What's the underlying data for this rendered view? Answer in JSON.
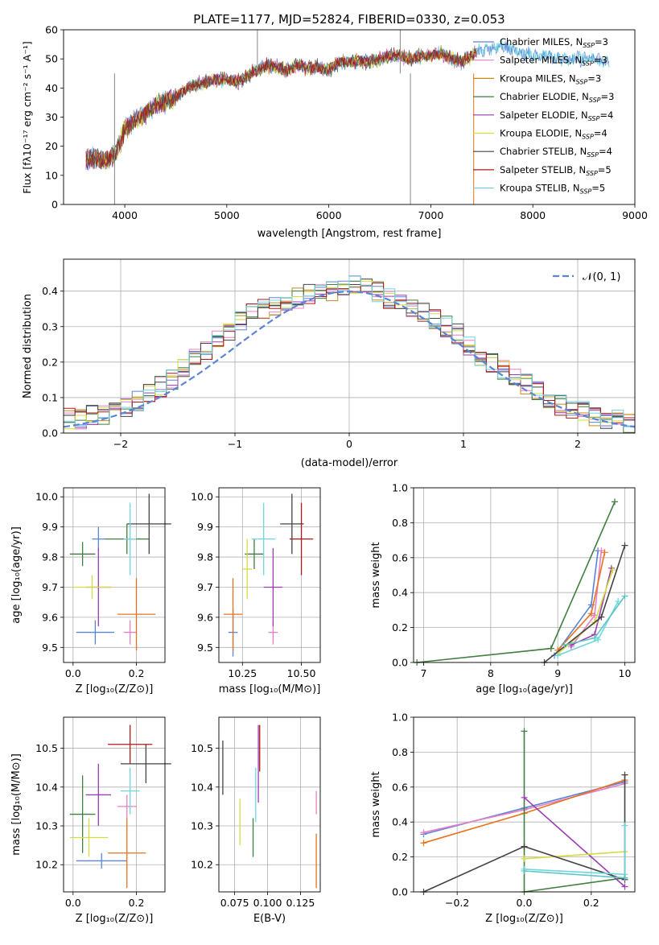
{
  "colors": {
    "chabrier_miles": "#5b84d6",
    "salpeter_miles": "#e87fc6",
    "kroupa_miles": "#c28a17",
    "chabrier_elodie": "#3f7f3f",
    "salpeter_elodie": "#9a3db0",
    "kroupa_elodie": "#d6dc3f",
    "chabrier_stelib": "#444444",
    "salpeter_stelib": "#b01818",
    "kroupa_stelib": "#6fd6e0",
    "orange": "#e8731d",
    "teal": "#5cc5c5"
  },
  "chart_data": [
    {
      "id": "spectrum",
      "type": "line",
      "title": "PLATE=1177, MJD=52824, FIBERID=0330, z=0.053",
      "xlabel": "wavelength [Angstrom, rest frame]",
      "ylabel": "Flux [fλ10⁻¹⁷ erg cm⁻² s⁻¹ A⁻¹]",
      "xlim": [
        3400,
        9000
      ],
      "ylim": [
        0,
        60
      ],
      "xticks": [
        "4000",
        "5000",
        "6000",
        "7000",
        "8000",
        "9000"
      ],
      "yticks": [
        "0",
        "10",
        "20",
        "30",
        "40",
        "50",
        "60"
      ],
      "legend_loc": "upper-right",
      "continuum_x": [
        3600,
        3700,
        3800,
        3900,
        3950,
        4000,
        4100,
        4200,
        4300,
        4400,
        4500,
        4600,
        4700,
        4800,
        4900,
        5000,
        5100,
        5200,
        5300,
        5400,
        5500,
        5600,
        5700,
        5800,
        5900,
        6000,
        6100,
        6200,
        6300,
        6400,
        6500,
        6600,
        6700,
        6800,
        6900,
        7000,
        7100,
        7200,
        7300,
        7400,
        7500,
        7600,
        7700,
        7800,
        7900,
        8000,
        8100,
        8200,
        8300,
        8400,
        8500,
        8600,
        8700,
        8800
      ],
      "continuum_y": [
        15,
        16,
        15,
        17,
        21,
        26,
        29,
        31,
        34,
        35,
        37,
        40,
        41,
        42,
        43,
        43,
        42,
        44,
        46,
        48,
        47,
        46,
        48,
        47,
        47,
        46,
        49,
        49,
        49,
        49,
        50,
        51,
        51,
        50,
        51,
        51,
        52,
        50,
        49,
        51,
        53,
        54,
        55,
        53,
        52,
        51,
        51,
        51,
        50,
        50,
        50,
        50,
        49,
        49
      ],
      "series": [
        {
          "name": "Chabrier MILES, N",
          "sub": "SSP",
          "suffix": "=3",
          "color_key": "chabrier_miles"
        },
        {
          "name": "Salpeter MILES, N",
          "sub": "SSP",
          "suffix": "=3",
          "color_key": "salpeter_miles"
        },
        {
          "name": "Kroupa MILES, N",
          "sub": "SSP",
          "suffix": "=3",
          "color_key": "kroupa_miles"
        },
        {
          "name": "Chabrier ELODIE, N",
          "sub": "SSP",
          "suffix": "=3",
          "color_key": "chabrier_elodie"
        },
        {
          "name": "Salpeter ELODIE, N",
          "sub": "SSP",
          "suffix": "=4",
          "color_key": "salpeter_elodie"
        },
        {
          "name": "Kroupa ELODIE, N",
          "sub": "SSP",
          "suffix": "=4",
          "color_key": "kroupa_elodie"
        },
        {
          "name": "Chabrier STELIB, N",
          "sub": "SSP",
          "suffix": "=4",
          "color_key": "chabrier_stelib"
        },
        {
          "name": "Salpeter STELIB, N",
          "sub": "SSP",
          "suffix": "=5",
          "color_key": "salpeter_stelib"
        },
        {
          "name": "Kroupa STELIB, N",
          "sub": "SSP",
          "suffix": "=5",
          "color_key": "kroupa_stelib"
        }
      ]
    },
    {
      "id": "residuals",
      "type": "line",
      "xlabel": "(data-model)/error",
      "ylabel": "Normed distribution",
      "xlim": [
        -2.5,
        2.5
      ],
      "ylim": [
        0,
        0.49
      ],
      "xticks": [
        "−2",
        "−1",
        "0",
        "1",
        "2"
      ],
      "yticks": [
        "0.0",
        "0.1",
        "0.2",
        "0.3",
        "0.4"
      ],
      "grid": true,
      "legend_loc": "upper-right",
      "legend_label": "𝒩(0, 1)",
      "bin_width": 0.1,
      "bins_from": -2.5,
      "hist": [
        0.04,
        0.04,
        0.05,
        0.05,
        0.06,
        0.07,
        0.09,
        0.11,
        0.13,
        0.15,
        0.18,
        0.21,
        0.23,
        0.26,
        0.29,
        0.32,
        0.34,
        0.35,
        0.36,
        0.37,
        0.38,
        0.39,
        0.39,
        0.4,
        0.41,
        0.42,
        0.41,
        0.4,
        0.38,
        0.37,
        0.35,
        0.34,
        0.32,
        0.3,
        0.28,
        0.25,
        0.22,
        0.2,
        0.18,
        0.16,
        0.14,
        0.12,
        0.1,
        0.08,
        0.07,
        0.06,
        0.05,
        0.04,
        0.04,
        0.03
      ]
    },
    {
      "id": "z_age",
      "type": "scatter",
      "xlabel": "Z [log₁₀(Z/Z⊙)]",
      "ylabel": "age  [log₁₀(age/yr)]",
      "xlim": [
        -0.03,
        0.29
      ],
      "ylim": [
        9.45,
        10.03
      ],
      "xticks": [
        "0.0",
        "0.2"
      ],
      "yticks": [
        "9.5",
        "9.6",
        "9.7",
        "9.8",
        "9.9",
        "10.0"
      ],
      "grid": true,
      "points": [
        {
          "x": 0.08,
          "y": 9.86,
          "xerr": 0.02,
          "yerr": 0.04,
          "color_key": "chabrier_miles"
        },
        {
          "x": 0.18,
          "y": 9.55,
          "xerr": 0.02,
          "yerr": 0.04,
          "color_key": "salpeter_miles"
        },
        {
          "x": 0.2,
          "y": 9.61,
          "xerr": 0.06,
          "yerr": 0.12,
          "color_key": "orange"
        },
        {
          "x": 0.03,
          "y": 9.81,
          "xerr": 0.04,
          "yerr": 0.04,
          "color_key": "chabrier_elodie"
        },
        {
          "x": 0.08,
          "y": 9.7,
          "xerr": 0.04,
          "yerr": 0.13,
          "color_key": "salpeter_elodie"
        },
        {
          "x": 0.06,
          "y": 9.7,
          "xerr": 0.06,
          "yerr": 0.04,
          "color_key": "kroupa_elodie"
        },
        {
          "x": 0.24,
          "y": 9.91,
          "xerr": 0.07,
          "yerr": 0.1,
          "color_key": "chabrier_stelib"
        },
        {
          "x": 0.17,
          "y": 9.86,
          "xerr": 0.07,
          "yerr": 0.05,
          "color_key": "chabrier_elodie"
        },
        {
          "x": 0.18,
          "y": 9.86,
          "xerr": 0.02,
          "yerr": 0.12,
          "color_key": "kroupa_stelib"
        },
        {
          "x": 0.07,
          "y": 9.55,
          "xerr": 0.06,
          "yerr": 0.04,
          "color_key": "chabrier_miles"
        }
      ]
    },
    {
      "id": "mass_age",
      "type": "scatter",
      "xlabel": "mass [log₁₀(M/M⊙)]",
      "xlim": [
        10.15,
        10.58
      ],
      "ylim": [
        9.45,
        10.03
      ],
      "xticks": [
        "10.25",
        "10.50"
      ],
      "yticks": [
        "9.5",
        "9.6",
        "9.7",
        "9.8",
        "9.9",
        "10.0"
      ],
      "grid": true,
      "points": [
        {
          "x": 10.21,
          "y": 9.55,
          "xerr": 0.02,
          "yerr": 0.08,
          "color_key": "chabrier_miles"
        },
        {
          "x": 10.38,
          "y": 9.55,
          "xerr": 0.02,
          "yerr": 0.04,
          "color_key": "salpeter_miles"
        },
        {
          "x": 10.21,
          "y": 9.61,
          "xerr": 0.04,
          "yerr": 0.12,
          "color_key": "orange"
        },
        {
          "x": 10.3,
          "y": 9.81,
          "xerr": 0.04,
          "yerr": 0.05,
          "color_key": "chabrier_elodie"
        },
        {
          "x": 10.38,
          "y": 9.7,
          "xerr": 0.04,
          "yerr": 0.13,
          "color_key": "salpeter_elodie"
        },
        {
          "x": 10.27,
          "y": 9.76,
          "xerr": 0.02,
          "yerr": 0.1,
          "color_key": "kroupa_elodie"
        },
        {
          "x": 10.46,
          "y": 9.91,
          "xerr": 0.05,
          "yerr": 0.1,
          "color_key": "chabrier_stelib"
        },
        {
          "x": 10.5,
          "y": 9.86,
          "xerr": 0.05,
          "yerr": 0.12,
          "color_key": "salpeter_stelib"
        },
        {
          "x": 10.34,
          "y": 9.86,
          "xerr": 0.05,
          "yerr": 0.12,
          "color_key": "kroupa_stelib"
        }
      ]
    },
    {
      "id": "age_weight",
      "type": "line",
      "xlabel": "age  [log₁₀(age/yr)]",
      "ylabel": "mass weight",
      "xlim": [
        6.85,
        10.15
      ],
      "ylim": [
        0,
        1.0
      ],
      "xticks": [
        "7",
        "8",
        "9",
        "10"
      ],
      "yticks": [
        "0.0",
        "0.2",
        "0.4",
        "0.6",
        "0.8",
        "1.0"
      ],
      "grid": true,
      "series": [
        {
          "color_key": "chabrier_miles",
          "x": [
            8.95,
            9.5,
            9.6
          ],
          "y": [
            0.04,
            0.33,
            0.64
          ]
        },
        {
          "color_key": "salpeter_miles",
          "x": [
            9.2,
            9.55,
            9.65
          ],
          "y": [
            0.09,
            0.27,
            0.64
          ]
        },
        {
          "color_key": "orange",
          "x": [
            9.0,
            9.5,
            9.7
          ],
          "y": [
            0.07,
            0.28,
            0.63
          ]
        },
        {
          "color_key": "chabrier_elodie",
          "x": [
            6.9,
            8.9,
            9.85
          ],
          "y": [
            0.0,
            0.08,
            0.92
          ]
        },
        {
          "color_key": "salpeter_elodie",
          "x": [
            9.2,
            9.55,
            9.8
          ],
          "y": [
            0.1,
            0.16,
            0.54
          ]
        },
        {
          "color_key": "kroupa_elodie",
          "x": [
            9.0,
            9.55,
            9.82
          ],
          "y": [
            0.05,
            0.23,
            0.53
          ]
        },
        {
          "color_key": "chabrier_stelib",
          "x": [
            8.8,
            9.65,
            10.0
          ],
          "y": [
            0.0,
            0.26,
            0.67
          ]
        },
        {
          "color_key": "kroupa_stelib",
          "x": [
            9.0,
            9.6,
            9.9
          ],
          "y": [
            0.04,
            0.13,
            0.35
          ]
        },
        {
          "color_key": "teal",
          "x": [
            9.1,
            9.55,
            10.0
          ],
          "y": [
            0.1,
            0.14,
            0.38
          ]
        }
      ]
    },
    {
      "id": "z_mass",
      "type": "scatter",
      "xlabel": "Z [log₁₀(Z/Z⊙)]",
      "ylabel": "mass [log₁₀(M/M⊙)]",
      "xlim": [
        -0.03,
        0.29
      ],
      "ylim": [
        10.13,
        10.58
      ],
      "xticks": [
        "0.0",
        "0.2"
      ],
      "yticks": [
        "10.2",
        "10.3",
        "10.4",
        "10.5"
      ],
      "grid": true,
      "points": [
        {
          "x": 0.09,
          "y": 10.21,
          "xerr": 0.08,
          "yerr": 0.02,
          "color_key": "chabrier_miles"
        },
        {
          "x": 0.17,
          "y": 10.35,
          "xerr": 0.03,
          "yerr": 0.03,
          "color_key": "salpeter_miles"
        },
        {
          "x": 0.17,
          "y": 10.23,
          "xerr": 0.06,
          "yerr": 0.09,
          "color_key": "orange"
        },
        {
          "x": 0.03,
          "y": 10.33,
          "xerr": 0.04,
          "yerr": 0.1,
          "color_key": "chabrier_elodie"
        },
        {
          "x": 0.08,
          "y": 10.38,
          "xerr": 0.04,
          "yerr": 0.08,
          "color_key": "salpeter_elodie"
        },
        {
          "x": 0.05,
          "y": 10.27,
          "xerr": 0.06,
          "yerr": 0.05,
          "color_key": "kroupa_elodie"
        },
        {
          "x": 0.23,
          "y": 10.46,
          "xerr": 0.08,
          "yerr": 0.05,
          "color_key": "chabrier_stelib"
        },
        {
          "x": 0.18,
          "y": 10.51,
          "xerr": 0.07,
          "yerr": 0.05,
          "color_key": "salpeter_stelib"
        },
        {
          "x": 0.18,
          "y": 10.39,
          "xerr": 0.03,
          "yerr": 0.06,
          "color_key": "kroupa_stelib"
        }
      ]
    },
    {
      "id": "ebv_mass",
      "type": "scatter",
      "xlabel": "E(B-V)",
      "xlim": [
        0.063,
        0.14
      ],
      "ylim": [
        10.13,
        10.58
      ],
      "xticks": [
        "0.075",
        "0.100",
        "0.125"
      ],
      "yticks": [
        "10.2",
        "10.3",
        "10.4",
        "10.5"
      ],
      "grid": true,
      "points": [
        {
          "x": 0.066,
          "y": 10.45,
          "yerr": 0.07,
          "color_key": "chabrier_stelib"
        },
        {
          "x": 0.079,
          "y": 10.31,
          "yerr": 0.06,
          "color_key": "kroupa_elodie"
        },
        {
          "x": 0.089,
          "y": 10.27,
          "yerr": 0.05,
          "color_key": "chabrier_elodie"
        },
        {
          "x": 0.091,
          "y": 10.38,
          "yerr": 0.07,
          "color_key": "kroupa_stelib"
        },
        {
          "x": 0.093,
          "y": 10.46,
          "yerr": 0.1,
          "color_key": "salpeter_elodie"
        },
        {
          "x": 0.094,
          "y": 10.5,
          "yerr": 0.06,
          "color_key": "salpeter_stelib"
        },
        {
          "x": 0.137,
          "y": 10.36,
          "yerr": 0.03,
          "color_key": "salpeter_miles"
        },
        {
          "x": 0.137,
          "y": 10.21,
          "yerr": 0.07,
          "color_key": "orange"
        }
      ]
    },
    {
      "id": "z_weight",
      "type": "line",
      "xlabel": "Z [log₁₀(Z/Z⊙)]",
      "ylabel": "mass weight",
      "xlim": [
        -0.33,
        0.33
      ],
      "ylim": [
        0,
        1.0
      ],
      "xticks": [
        "−0.2",
        "0.0",
        "0.2"
      ],
      "yticks": [
        "0.0",
        "0.2",
        "0.4",
        "0.6",
        "0.8",
        "1.0"
      ],
      "grid": true,
      "series": [
        {
          "color_key": "chabrier_miles",
          "x": [
            -0.3,
            0.0,
            0.3
          ],
          "y": [
            0.33,
            0.48,
            0.63
          ]
        },
        {
          "color_key": "salpeter_miles",
          "x": [
            -0.3,
            0.0,
            0.3
          ],
          "y": [
            0.34,
            0.47,
            0.62
          ]
        },
        {
          "color_key": "orange",
          "x": [
            -0.3,
            0.0,
            0.3
          ],
          "y": [
            0.28,
            0.45,
            0.64
          ]
        },
        {
          "color_key": "chabrier_elodie",
          "x": [
            0.0,
            0.0,
            0.3
          ],
          "y": [
            0.92,
            0.0,
            0.08
          ]
        },
        {
          "color_key": "salpeter_elodie",
          "x": [
            0.0,
            0.3
          ],
          "y": [
            0.54,
            0.03
          ]
        },
        {
          "color_key": "kroupa_elodie",
          "x": [
            0.0,
            0.3
          ],
          "y": [
            0.19,
            0.23
          ]
        },
        {
          "color_key": "chabrier_stelib",
          "x": [
            -0.3,
            0.0,
            0.3,
            0.3
          ],
          "y": [
            0.0,
            0.26,
            0.07,
            0.67
          ]
        },
        {
          "color_key": "kroupa_stelib",
          "x": [
            0.0,
            0.3,
            0.3
          ],
          "y": [
            0.13,
            0.1,
            0.38
          ]
        },
        {
          "color_key": "teal",
          "x": [
            0.0,
            0.3
          ],
          "y": [
            0.12,
            0.08
          ]
        }
      ]
    }
  ]
}
